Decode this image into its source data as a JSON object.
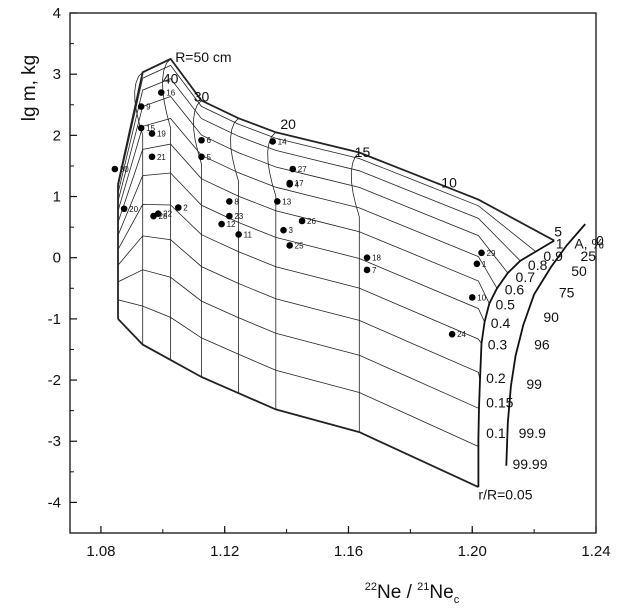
{
  "chart_data": {
    "type": "scatter",
    "title": "",
    "xlabel": {
      "mass1": "22",
      "el1": "Ne / ",
      "mass2": "21",
      "el2": "Ne",
      "sub": "c"
    },
    "ylabel": "lg m, kg",
    "xlim": [
      1.07,
      1.24
    ],
    "ylim": [
      -4.5,
      4
    ],
    "xticks": [
      1.08,
      1.12,
      1.16,
      1.2,
      1.24
    ],
    "yticks": [
      4,
      3,
      2,
      1,
      0,
      -1,
      -2,
      -3,
      -4
    ],
    "xtick_labels": [
      "1.08",
      "1.12",
      "1.16",
      "1.20",
      "1.24"
    ],
    "ytick_labels": [
      "4",
      "3",
      "2",
      "1",
      "0",
      "-1",
      "-2",
      "-3",
      "-4"
    ],
    "grid": false,
    "model_grid": {
      "radius_labels": [
        "R=50 cm",
        "40",
        "30",
        "20",
        "15",
        "10",
        "5"
      ],
      "depth_labels": [
        "1",
        "0.9",
        "0.8",
        "0.7",
        "0.6",
        "0.5",
        "0.4",
        "0.3",
        "0.2",
        "0.15",
        "0.1",
        "r/R=0.05"
      ],
      "ablation_title": "A, %",
      "ablation_labels": [
        "0",
        "25",
        "50",
        "75",
        "90",
        "96",
        "99",
        "99.9",
        "99.99"
      ]
    },
    "points": [
      {
        "id": "1",
        "x": 1.2015,
        "y": -0.1
      },
      {
        "id": "2",
        "x": 1.105,
        "y": 0.82
      },
      {
        "id": "3",
        "x": 1.139,
        "y": 0.45
      },
      {
        "id": "4",
        "x": 1.141,
        "y": 1.2
      },
      {
        "id": "5",
        "x": 1.1125,
        "y": 1.65
      },
      {
        "id": "6",
        "x": 1.1125,
        "y": 1.92
      },
      {
        "id": "7",
        "x": 1.166,
        "y": -0.2
      },
      {
        "id": "8",
        "x": 1.1215,
        "y": 0.92
      },
      {
        "id": "9",
        "x": 1.093,
        "y": 2.47
      },
      {
        "id": "10",
        "x": 1.2,
        "y": -0.65
      },
      {
        "id": "11",
        "x": 1.1245,
        "y": 0.38
      },
      {
        "id": "12",
        "x": 1.119,
        "y": 0.55
      },
      {
        "id": "13",
        "x": 1.137,
        "y": 0.92
      },
      {
        "id": "14",
        "x": 1.1355,
        "y": 1.9
      },
      {
        "id": "15",
        "x": 1.093,
        "y": 2.12
      },
      {
        "id": "16",
        "x": 1.0995,
        "y": 2.7
      },
      {
        "id": "17",
        "x": 1.141,
        "y": 1.22
      },
      {
        "id": "18",
        "x": 1.166,
        "y": 0.0
      },
      {
        "id": "19",
        "x": 1.0965,
        "y": 2.03
      },
      {
        "id": "20",
        "x": 1.0875,
        "y": 0.8
      },
      {
        "id": "21",
        "x": 1.0965,
        "y": 1.65
      },
      {
        "id": "22",
        "x": 1.0985,
        "y": 0.72
      },
      {
        "id": "23",
        "x": 1.1215,
        "y": 0.68
      },
      {
        "id": "24",
        "x": 1.1935,
        "y": -1.25
      },
      {
        "id": "25",
        "x": 1.141,
        "y": 0.2
      },
      {
        "id": "26",
        "x": 1.145,
        "y": 0.6
      },
      {
        "id": "27",
        "x": 1.142,
        "y": 1.45
      },
      {
        "id": "28",
        "x": 1.097,
        "y": 0.68
      },
      {
        "id": "29",
        "x": 1.203,
        "y": 0.08
      },
      {
        "id": "30",
        "x": 1.0845,
        "y": 1.45
      }
    ]
  }
}
